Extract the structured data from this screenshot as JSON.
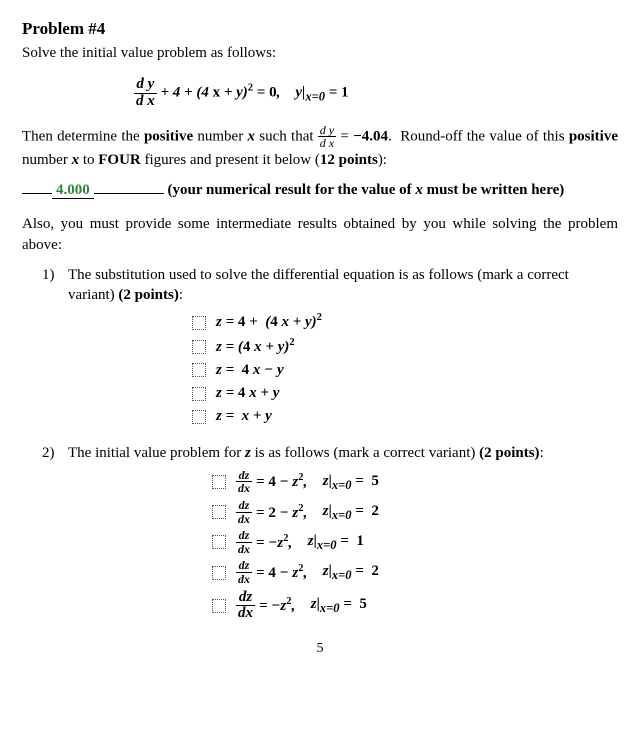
{
  "title": "Problem #4",
  "intro": "Solve the initial value problem as follows:",
  "main_eq_html": "<span class='frac'><span class='num'>d y</span><span class='den'>d x</span></span> + 4 + (4 <span class='nb'>x</span> + y)<sup><span class='nb'>2</span></sup> = <span class='nb'>0</span>, &nbsp;&nbsp; y|<sub>x=0</sub> = <span class='nb'>1</span>",
  "para1_html": "Then determine the <b>positive</b> number <b><i>x</i></b> such that <span class='frac small'><span class='num'><i>d y</i></span><span class='den'><i>d x</i></span></span> = <b>−4.04</b>.&nbsp; Round-off the value of this <b>positive</b> number <b><i>x</i></b> to <b>FOUR</b> figures and present it below (<b>12 points</b>):",
  "answer_value": "4.000",
  "answer_tail": "(your numerical result for the value of <i>x</i> must be written here)",
  "para2": "Also, you must provide some intermediate results obtained by you while solving the problem above:",
  "q1_html": "The substitution used to solve the differential equation is as follows (mark a correct variant) <b>(2 points)</b>:",
  "q1_opts": [
    "z = <span class='nb'>4</span> + &nbsp;(<span class='nb'>4</span> x + y)<sup><span class='nb'>2</span></sup>",
    "z = (<span class='nb'>4</span> x + y)<sup><span class='nb'>2</span></sup>",
    "z = &nbsp;<span class='nb'>4</span> x − y",
    "z = <span class='nb'>4</span> x + y",
    "z = &nbsp;x + y"
  ],
  "q2_text": "The initial value problem for <b><i>z</i></b> is as follows (mark a correct variant) <b>(2 points)</b>:",
  "q2_opts": [
    {
      "lhs_big": false,
      "rhs": "<span class='nb'>4</span> − z<sup><span class='nb'>2</span></sup>,",
      "ic": "z|<sub>x=0</sub> = &nbsp;<span class='nb'>5</span>"
    },
    {
      "lhs_big": false,
      "rhs": "<span class='nb'>2</span> − z<sup><span class='nb'>2</span></sup>,",
      "ic": "z|<sub>x=0</sub> = &nbsp;<span class='nb'>2</span>"
    },
    {
      "lhs_big": false,
      "rhs": "−z<sup><span class='nb'>2</span></sup>,",
      "ic": "z|<sub>x=0</sub> = &nbsp;<span class='nb'>1</span>"
    },
    {
      "lhs_big": false,
      "rhs": "<span class='nb'>4</span> − z<sup><span class='nb'>2</span></sup>,",
      "ic": "z|<sub>x=0</sub> = &nbsp;<span class='nb'>2</span>"
    },
    {
      "lhs_big": true,
      "rhs": "−z<sup><span class='nb'>2</span></sup>,",
      "ic": "z|<sub>x=0</sub> = &nbsp;<span class='nb'>5</span>"
    }
  ],
  "page_number": "5"
}
